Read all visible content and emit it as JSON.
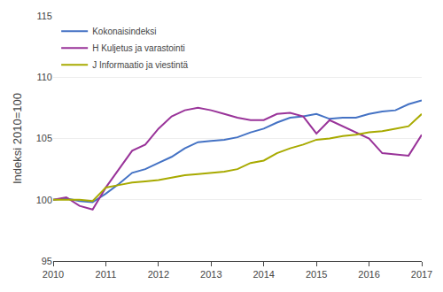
{
  "chart_data": {
    "type": "line",
    "ylabel": "Indeksi 2010=100",
    "categories": [
      "2010",
      null,
      null,
      null,
      "2011",
      null,
      null,
      null,
      "2012",
      null,
      null,
      null,
      "2013",
      null,
      null,
      null,
      "2014",
      null,
      null,
      null,
      "2015",
      null,
      null,
      null,
      "2016",
      null,
      null,
      null,
      "2017"
    ],
    "series": [
      {
        "name": "Kokonaisindeksi",
        "color": "#4472C4",
        "values": [
          100.0,
          100.1,
          99.9,
          99.8,
          100.5,
          101.3,
          102.2,
          102.5,
          103.0,
          103.5,
          104.2,
          104.7,
          104.8,
          104.9,
          105.1,
          105.5,
          105.8,
          106.3,
          106.7,
          106.8,
          107.0,
          106.6,
          106.7,
          106.7,
          107.0,
          107.2,
          107.3,
          107.8,
          108.1
        ]
      },
      {
        "name": "H Kuljetus ja varastointi",
        "color": "#993399",
        "values": [
          100.0,
          100.2,
          99.5,
          99.2,
          101.0,
          102.5,
          104.0,
          104.5,
          105.8,
          106.8,
          107.3,
          107.5,
          107.3,
          107.0,
          106.7,
          106.5,
          106.5,
          107.0,
          107.1,
          106.8,
          105.4,
          106.5,
          106.0,
          105.5,
          105.0,
          103.8,
          103.7,
          103.6,
          105.3
        ]
      },
      {
        "name": "J Informaatio ja viestintä",
        "color": "#A8AA00",
        "values": [
          100.0,
          100.0,
          100.0,
          99.9,
          101.0,
          101.2,
          101.4,
          101.5,
          101.6,
          101.8,
          102.0,
          102.1,
          102.2,
          102.3,
          102.5,
          103.0,
          103.2,
          103.8,
          104.2,
          104.5,
          104.9,
          105.0,
          105.2,
          105.3,
          105.5,
          105.6,
          105.8,
          106.0,
          107.0
        ]
      }
    ],
    "ylim": [
      95,
      115
    ],
    "yticks": [
      95,
      100,
      105,
      110,
      115
    ],
    "grid": true,
    "legend": "upper left"
  }
}
